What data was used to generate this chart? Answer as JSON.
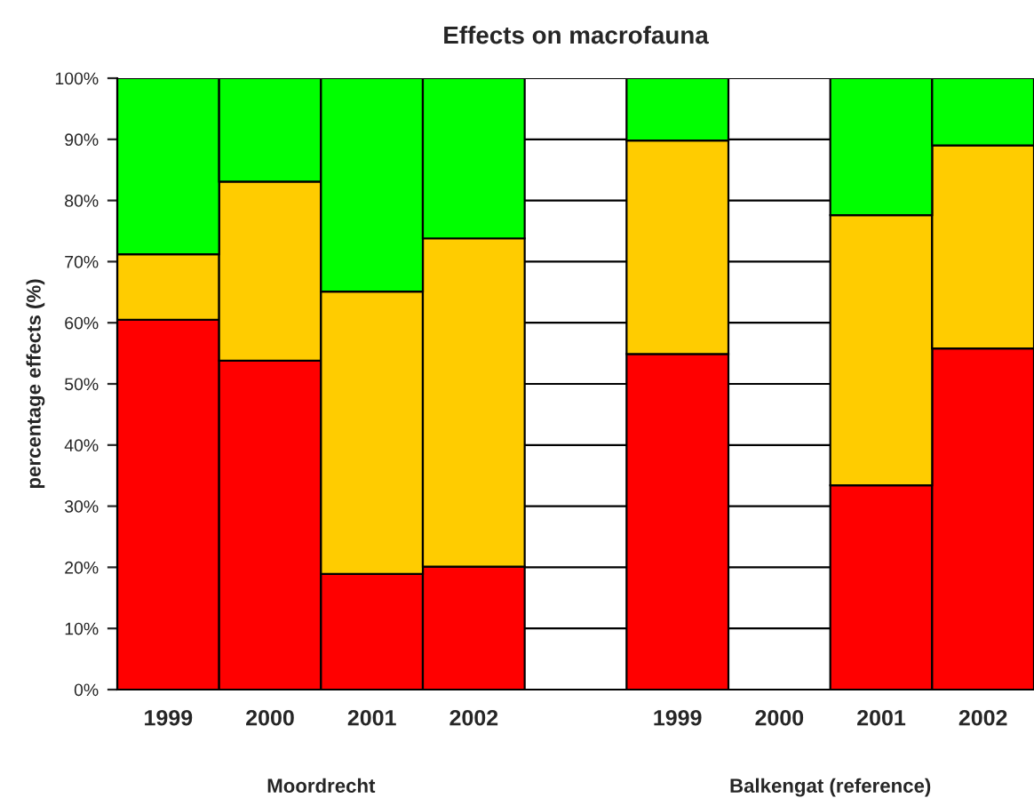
{
  "chart_data": {
    "type": "bar",
    "title": "Effects on macrofauna",
    "ylabel": "percentage effects (%)",
    "categories": [
      "1999",
      "2000",
      "2001",
      "2002",
      null,
      "1999",
      "2000",
      "2001",
      "2002"
    ],
    "stacked": true,
    "series": [
      {
        "color": "#ff0000",
        "values": [
          60.5,
          53.8,
          18.9,
          20.1,
          null,
          54.9,
          null,
          33.4,
          55.8
        ]
      },
      {
        "color": "#ffcc00",
        "values": [
          10.7,
          29.3,
          46.2,
          53.7,
          null,
          34.9,
          null,
          44.2,
          33.2
        ]
      },
      {
        "color": "#00ff00",
        "values": [
          28.8,
          16.9,
          34.9,
          26.2,
          null,
          10.2,
          null,
          22.4,
          11.0
        ]
      }
    ],
    "ylim": [
      0,
      100
    ],
    "yticks": [
      {
        "value": 0,
        "label": "0%"
      },
      {
        "value": 10,
        "label": "10%"
      },
      {
        "value": 20,
        "label": "20%"
      },
      {
        "value": 30,
        "label": "30%"
      },
      {
        "value": 40,
        "label": "40%"
      },
      {
        "value": 50,
        "label": "50%"
      },
      {
        "value": 60,
        "label": "60%"
      },
      {
        "value": 70,
        "label": "70%"
      },
      {
        "value": 80,
        "label": "80%"
      },
      {
        "value": 90,
        "label": "90%"
      },
      {
        "value": 100,
        "label": "100%"
      }
    ],
    "grid": "y",
    "annotations": [
      "Moordrecht",
      "Balkengat (reference)"
    ]
  }
}
